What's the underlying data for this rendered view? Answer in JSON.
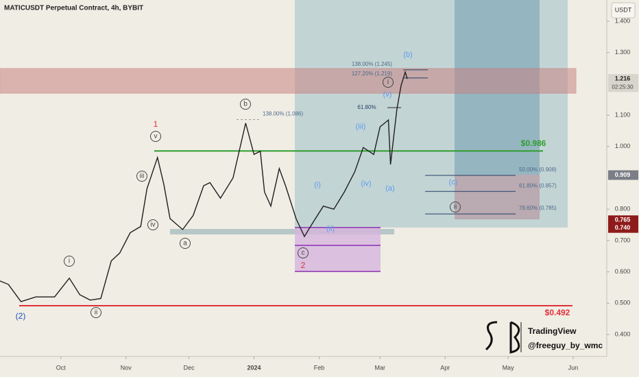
{
  "chart_data": {
    "type": "line",
    "title": "MATICUSDT Perpetual Contract, 4h, BYBIT",
    "currency": "USDT",
    "x": [
      -29,
      -25,
      -19,
      -12,
      -3,
      4,
      9,
      14,
      19,
      24,
      28,
      33,
      38,
      41,
      46,
      49,
      52,
      58,
      63,
      68,
      71,
      76,
      82,
      88,
      92,
      95,
      97,
      100,
      104,
      107,
      112,
      116,
      120,
      125,
      130,
      135,
      140,
      144,
      149,
      152,
      156,
      157,
      160,
      162,
      164,
      165
    ],
    "series": [
      {
        "color": "#1e1e1e",
        "values": [
          0.571,
          0.56,
          0.505,
          0.52,
          0.52,
          0.58,
          0.527,
          0.51,
          0.515,
          0.635,
          0.66,
          0.725,
          0.745,
          0.866,
          0.965,
          0.88,
          0.77,
          0.735,
          0.78,
          0.875,
          0.885,
          0.835,
          0.9,
          1.075,
          0.975,
          0.985,
          0.855,
          0.81,
          0.93,
          0.875,
          0.77,
          0.713,
          0.757,
          0.81,
          0.8,
          0.855,
          0.92,
          0.997,
          0.975,
          1.063,
          1.085,
          0.943,
          1.118,
          1.194,
          1.238,
          1.216
        ]
      }
    ],
    "xlim": [
      -29,
      260
    ],
    "ylim": [
      0.33,
      1.468
    ],
    "xticks": [
      {
        "value": 0,
        "label": "Oct"
      },
      {
        "value": 31,
        "label": "Nov"
      },
      {
        "value": 61,
        "label": "Dec"
      },
      {
        "value": 92,
        "label": "2024"
      },
      {
        "value": 123,
        "label": "Feb"
      },
      {
        "value": 152,
        "label": "Mar"
      },
      {
        "value": 183,
        "label": "Apr"
      },
      {
        "value": 213,
        "label": "May"
      },
      {
        "value": 244,
        "label": "Jun"
      }
    ],
    "yticks": [
      {
        "value": 1.4,
        "label": "1.400"
      },
      {
        "value": 1.3,
        "label": "1.300"
      },
      {
        "value": 1.1,
        "label": "1.100"
      },
      {
        "value": 1.0,
        "label": "1.000"
      },
      {
        "value": 0.8,
        "label": "0.800"
      },
      {
        "value": 0.7,
        "label": "0.700"
      },
      {
        "value": 0.6,
        "label": "0.600"
      },
      {
        "value": 0.5,
        "label": "0.500"
      },
      {
        "value": 0.4,
        "label": "0.400"
      }
    ],
    "levels": [
      {
        "value": 0.986,
        "label": "$0.986",
        "color": "#2e9e2e"
      },
      {
        "value": 0.492,
        "label": "$0.492",
        "color": "#e0303a"
      }
    ],
    "fib_levels": [
      {
        "value": 1.245,
        "label": "138.00% (1.245)"
      },
      {
        "value": 1.219,
        "label": "127.20% (1.219)"
      },
      {
        "value": 1.086,
        "label": "138.00% (1.086)"
      },
      {
        "value": 0.908,
        "label": "50.00% (0.908)"
      },
      {
        "value": 0.857,
        "label": "61.80% (0.857)"
      },
      {
        "value": 0.785,
        "label": "78.60% (0.785)"
      }
    ],
    "price_labels": [
      {
        "value": 1.216,
        "label": "1.216",
        "color": "#d8d5cc"
      },
      {
        "value": 0.909,
        "label": "0.909",
        "color": "#7b7e86"
      },
      {
        "value": 0.765,
        "label": "0.765",
        "color": "#8e1b1b"
      },
      {
        "value": 0.74,
        "label": "0.740",
        "color": "#8e1b1b"
      }
    ],
    "countdown": "02:25:30",
    "annotations": [
      "(2)",
      "ii",
      "i",
      "iii",
      "iv",
      "v",
      "1",
      "a",
      "b",
      "c",
      "2",
      "i",
      "(i)",
      "(ii)",
      "(iii)",
      "(iv)",
      "(v)",
      "(a)",
      "(b)",
      "(c)",
      "ii",
      "61.80%"
    ],
    "watermark": [
      "TradingView",
      "@freeguy_by_wmc"
    ]
  }
}
